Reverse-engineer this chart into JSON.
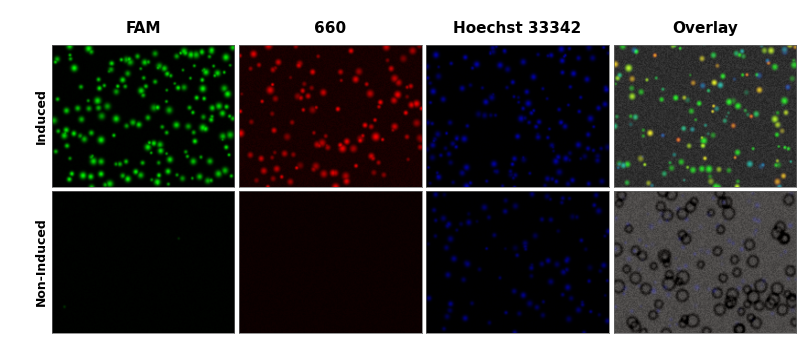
{
  "col_labels": [
    "FAM",
    "660",
    "Hoechst 33342",
    "Overlay"
  ],
  "row_labels": [
    "Induced",
    "Non-Induced"
  ],
  "col_label_fontsize": 11,
  "row_label_fontsize": 9,
  "col_label_color": "#000000",
  "row_label_color": "#000000",
  "fig_bg": "#ffffff",
  "seed": 42,
  "fam_induced": {
    "n_cells": 180,
    "r_min": 2.0,
    "r_max": 5.0,
    "bright_min": 0.6,
    "bright_max": 1.0,
    "bg": 0.0
  },
  "fam_noninduced": {
    "n_cells": 2,
    "r_min": 1.5,
    "r_max": 3.0,
    "bright_min": 0.1,
    "bright_max": 0.2,
    "bg": 0.0
  },
  "red_induced": {
    "n_cells": 120,
    "r_min": 2.5,
    "r_max": 6.0,
    "bright_min": 0.4,
    "bright_max": 1.0,
    "bg": 0.12
  },
  "red_noninduced": {
    "n_cells": 0,
    "r_min": 2.0,
    "r_max": 4.0,
    "bright_min": 0.1,
    "bright_max": 0.2,
    "bg": 0.06
  },
  "blue_induced": {
    "n_cells": 160,
    "r_min": 2.0,
    "r_max": 4.5,
    "bright_min": 0.3,
    "bright_max": 0.7,
    "bg": 0.0
  },
  "blue_noninduced": {
    "n_cells": 100,
    "r_min": 2.0,
    "r_max": 4.5,
    "bright_min": 0.2,
    "bright_max": 0.55,
    "bg": 0.0
  },
  "overlay_induced": {
    "n_cells": 150,
    "r_min": 2.5,
    "r_max": 6.0,
    "gray_base": 0.18
  },
  "overlay_noninduced": {
    "n_cells": 90,
    "r_min": 3.0,
    "r_max": 6.5,
    "gray_base": 0.3
  }
}
